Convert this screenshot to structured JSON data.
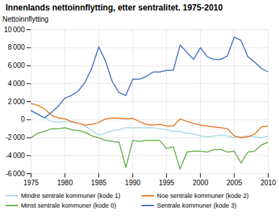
{
  "chart_data": {
    "type": "line",
    "title": "Innenlands nettoinnflytting, etter sentralitet. 1975-2010",
    "ylabel": "Nettoinnflytting",
    "x": [
      1975,
      1976,
      1977,
      1978,
      1979,
      1980,
      1981,
      1982,
      1983,
      1984,
      1985,
      1986,
      1987,
      1988,
      1989,
      1990,
      1991,
      1992,
      1993,
      1994,
      1995,
      1996,
      1997,
      1998,
      1999,
      2000,
      2001,
      2002,
      2003,
      2004,
      2005,
      2006,
      2007,
      2008,
      2009,
      2010
    ],
    "series": [
      {
        "name": "Mindre sentrale kommuner (kode 1)",
        "color": "#add8e6",
        "values": [
          1050,
          600,
          200,
          -200,
          -300,
          -200,
          -300,
          -400,
          -700,
          -1200,
          -1700,
          -1500,
          -1200,
          -1100,
          -900,
          -900,
          -900,
          -900,
          -900,
          -1000,
          -1100,
          -1300,
          -1300,
          -1500,
          -1600,
          -1800,
          -1900,
          -1800,
          -1700,
          -1800,
          -2000,
          -1900,
          -1800,
          -1900,
          -2000,
          -1800
        ]
      },
      {
        "name": "Noe sentrale kommuner (kode 2)",
        "color": "#e87722",
        "values": [
          1800,
          1600,
          1200,
          500,
          200,
          100,
          -200,
          -400,
          -600,
          -500,
          -300,
          100,
          200,
          150,
          100,
          150,
          -200,
          -500,
          -600,
          -500,
          -700,
          -700,
          100,
          -200,
          -400,
          -600,
          -700,
          -800,
          -900,
          -1000,
          -1800,
          -2000,
          -1900,
          -1600,
          -800,
          -700
        ]
      },
      {
        "name": "Minst sentrale kommuner (kode 0)",
        "color": "#6ab04c",
        "values": [
          -2000,
          -1500,
          -1300,
          -1000,
          -1000,
          -900,
          -1100,
          -1200,
          -1400,
          -1800,
          -2000,
          -2300,
          -2400,
          -2500,
          -5300,
          -2300,
          -2400,
          -2300,
          -2300,
          -2300,
          -3200,
          -3000,
          -5500,
          -3600,
          -3500,
          -3500,
          -3600,
          -3300,
          -3300,
          -3600,
          -3500,
          -4800,
          -3600,
          -3500,
          -2800,
          -2500
        ]
      },
      {
        "name": "Sentrale kommuner (kode 3)",
        "color": "#4472c4",
        "values": [
          1000,
          600,
          200,
          800,
          1500,
          2400,
          2700,
          3200,
          4200,
          5800,
          8100,
          6500,
          4200,
          3000,
          2700,
          4500,
          4500,
          4800,
          5300,
          5300,
          5500,
          5500,
          8300,
          7500,
          6700,
          8000,
          7000,
          6700,
          6700,
          7100,
          9200,
          8800,
          7000,
          6400,
          5700,
          5300
        ]
      }
    ],
    "xlim": [
      1975,
      2010
    ],
    "xticks": [
      1975,
      1980,
      1985,
      1990,
      1995,
      2000,
      2005,
      2010
    ],
    "ylim": [
      -6000,
      10000
    ],
    "yticks": [
      {
        "value": -6000,
        "label": "-6 000"
      },
      {
        "value": -4000,
        "label": "-4 000"
      },
      {
        "value": -2000,
        "label": "-2 000"
      },
      0,
      {
        "value": 2000,
        "label": "2 000"
      },
      {
        "value": 4000,
        "label": "4 000"
      },
      {
        "value": 6000,
        "label": "6 000"
      },
      {
        "value": 8000,
        "label": "8 000"
      },
      {
        "value": 10000,
        "label": "10 000"
      }
    ],
    "grid": true,
    "legend": "bottom"
  }
}
